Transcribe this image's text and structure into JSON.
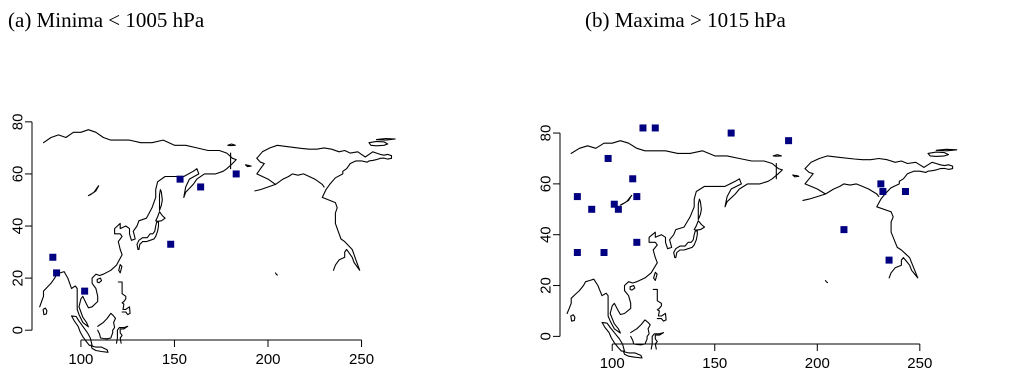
{
  "chart_data": [
    {
      "type": "scatter",
      "title": "(a) Minima < 1005 hPa",
      "xlabel": "",
      "ylabel": "",
      "xlim": [
        76,
        293
      ],
      "ylim": [
        -3,
        93
      ],
      "x_ticks": [
        100,
        150,
        200,
        250
      ],
      "y_ticks": [
        0,
        20,
        40,
        60,
        80
      ],
      "grid": false,
      "marker_color": "#000080",
      "points": [
        {
          "x": 85,
          "y": 28
        },
        {
          "x": 87,
          "y": 22
        },
        {
          "x": 102,
          "y": 15
        },
        {
          "x": 148,
          "y": 33
        },
        {
          "x": 153,
          "y": 58
        },
        {
          "x": 164,
          "y": 55
        },
        {
          "x": 183,
          "y": 60
        }
      ]
    },
    {
      "type": "scatter",
      "title": "(b) Maxima > 1015 hPa",
      "xlabel": "",
      "ylabel": "",
      "xlim": [
        76,
        293
      ],
      "ylim": [
        -3,
        93
      ],
      "x_ticks": [
        100,
        150,
        200,
        250
      ],
      "y_ticks": [
        0,
        20,
        40,
        60,
        80
      ],
      "grid": false,
      "marker_color": "#000080",
      "points": [
        {
          "x": 83,
          "y": 33
        },
        {
          "x": 83,
          "y": 55
        },
        {
          "x": 90,
          "y": 50
        },
        {
          "x": 96,
          "y": 33
        },
        {
          "x": 98,
          "y": 70
        },
        {
          "x": 101,
          "y": 52
        },
        {
          "x": 103,
          "y": 50
        },
        {
          "x": 110,
          "y": 62
        },
        {
          "x": 112,
          "y": 55
        },
        {
          "x": 112,
          "y": 37
        },
        {
          "x": 115,
          "y": 82
        },
        {
          "x": 121,
          "y": 82
        },
        {
          "x": 158,
          "y": 80
        },
        {
          "x": 186,
          "y": 77
        },
        {
          "x": 213,
          "y": 42
        },
        {
          "x": 231,
          "y": 60
        },
        {
          "x": 232,
          "y": 57
        },
        {
          "x": 235,
          "y": 30
        },
        {
          "x": 243,
          "y": 57
        }
      ]
    }
  ]
}
